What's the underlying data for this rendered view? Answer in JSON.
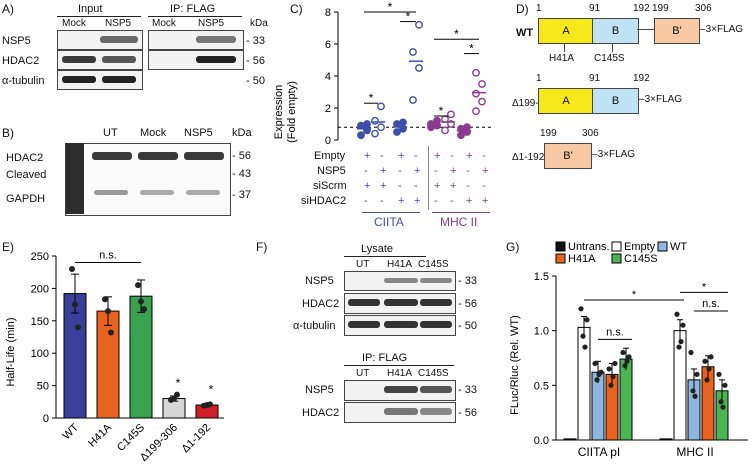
{
  "panelA": {
    "label": "A)",
    "input": "Input",
    "ip": "IP: FLAG",
    "mock": "Mock",
    "nsp5": "NSP5",
    "kda": "kDa",
    "rows": [
      "NSP5",
      "HDAC2",
      "α-tubulin"
    ],
    "markers": [
      "33",
      "56",
      "50"
    ]
  },
  "panelB": {
    "label": "B)",
    "cols": [
      "UT",
      "Mock",
      "NSP5"
    ],
    "kda": "kDa",
    "rows": [
      "HDAC2",
      "Cleaved",
      "GAPDH"
    ],
    "markers": [
      "56",
      "43",
      "37"
    ]
  },
  "panelC": {
    "label": "C)",
    "ylabel1": "Expression",
    "ylabel2": "(Fold empty)",
    "conditions": [
      "Empty",
      "NSP5",
      "siScrm",
      "siHDAC2"
    ],
    "signs": [
      [
        "+",
        "-",
        "+",
        "-"
      ],
      [
        "-",
        "+",
        "-",
        "+"
      ],
      [
        "+",
        "+",
        "-",
        "-"
      ],
      [
        "-",
        "-",
        "+",
        "+"
      ]
    ],
    "groups": [
      "CIITA",
      "MHC II"
    ],
    "star": "*",
    "chart_data": {
      "type": "scatter",
      "title": "",
      "ylabel": "Expression (Fold empty)",
      "ylim": [
        0,
        8
      ],
      "yticks": [
        0,
        2,
        4,
        6,
        8
      ],
      "reference_line": 0.8,
      "groups": [
        {
          "name": "CIITA",
          "color": "#3d4fa8",
          "series": [
            {
              "name": "Empty/siScrm",
              "values": [
                0.3,
                0.6,
                0.9,
                1.0
              ]
            },
            {
              "name": "NSP5/siScrm",
              "values": [
                0.4,
                0.8,
                1.2,
                2.1
              ]
            },
            {
              "name": "Empty/siHDAC2",
              "values": [
                0.5,
                0.7,
                1.0,
                1.1
              ]
            },
            {
              "name": "NSP5/siHDAC2",
              "values": [
                2.5,
                4.5,
                5.5,
                7.2
              ]
            }
          ]
        },
        {
          "name": "MHC II",
          "color": "#8b3a8f",
          "series": [
            {
              "name": "Empty/siScrm",
              "values": [
                0.8,
                0.9,
                1.0,
                1.2
              ]
            },
            {
              "name": "NSP5/siScrm",
              "values": [
                0.6,
                1.0,
                1.3,
                1.6
              ]
            },
            {
              "name": "Empty/siHDAC2",
              "values": [
                0.3,
                0.5,
                0.7,
                0.8
              ]
            },
            {
              "name": "NSP5/siHDAC2",
              "values": [
                1.8,
                2.4,
                2.9,
                3.5,
                4.2
              ]
            }
          ]
        }
      ]
    }
  },
  "panelD": {
    "label": "D)",
    "wt": "WT",
    "del1": "Δ199-306",
    "del2": "Δ1-192",
    "flag": "3×FLAG",
    "domA": "A",
    "domB": "B",
    "domBp": "B'",
    "n1": "1",
    "n91": "91",
    "n192": "192",
    "n199": "199",
    "n306": "306",
    "h41a": "H41A",
    "c145s": "C145S"
  },
  "panelE": {
    "label": "E)",
    "ylabel": "Half-Life (min)",
    "ns": "n.s.",
    "star": "*",
    "chart_data": {
      "type": "bar",
      "categories": [
        "WT",
        "H41A",
        "C145S",
        "Δ199-306",
        "Δ1-192"
      ],
      "values": [
        192,
        165,
        188,
        30,
        20
      ],
      "errors": [
        30,
        22,
        25,
        4,
        2
      ],
      "points": [
        [
          230,
          175,
          140
        ],
        [
          183,
          165,
          132
        ],
        [
          205,
          180,
          168
        ],
        [
          28,
          30,
          36
        ],
        [
          19,
          20,
          21
        ]
      ],
      "colors": [
        "#3c3f99",
        "#e8641e",
        "#3aa14f",
        "#d6d6d6",
        "#d11f2a"
      ],
      "ylim": [
        0,
        250
      ],
      "yticks": [
        0,
        50,
        100,
        150,
        200,
        250
      ],
      "ylabel": "Half-Life (min)"
    }
  },
  "panelF": {
    "label": "F)",
    "lysate": "Lysate",
    "ip": "IP: FLAG",
    "cols": [
      "UT",
      "H41A",
      "C145S"
    ],
    "rows": [
      "NSP5",
      "HDAC2",
      "α-tubulin"
    ],
    "markers": [
      "33",
      "56",
      "50"
    ],
    "ip_rows": [
      "NSP5",
      "HDAC2"
    ],
    "ip_markers": [
      "33",
      "56"
    ]
  },
  "panelG": {
    "label": "G)",
    "ylabel": "FLuc/Rluc (Rel. WT)",
    "ns": "n.s.",
    "star": "*",
    "legend": [
      "Untrans.",
      "WT",
      "C145S",
      "Empty",
      "H41A"
    ],
    "chart_data": {
      "type": "bar",
      "categories": [
        "CIITA pI",
        "MHC II"
      ],
      "series": [
        {
          "name": "Untrans.",
          "color": "#111111",
          "values": [
            0.01,
            0.01
          ]
        },
        {
          "name": "Empty",
          "color": "#ffffff",
          "values": [
            1.03,
            1.0
          ]
        },
        {
          "name": "WT",
          "color": "#8fb6e0",
          "values": [
            0.62,
            0.55
          ]
        },
        {
          "name": "H41A",
          "color": "#e8641e",
          "values": [
            0.6,
            0.67
          ]
        },
        {
          "name": "C145S",
          "color": "#4ab552",
          "values": [
            0.74,
            0.45
          ]
        }
      ],
      "ylim": [
        0,
        1.5
      ],
      "yticks": [
        0.0,
        0.5,
        1.0,
        1.5
      ],
      "ylabel": "FLuc/Rluc (Rel. WT)"
    }
  }
}
